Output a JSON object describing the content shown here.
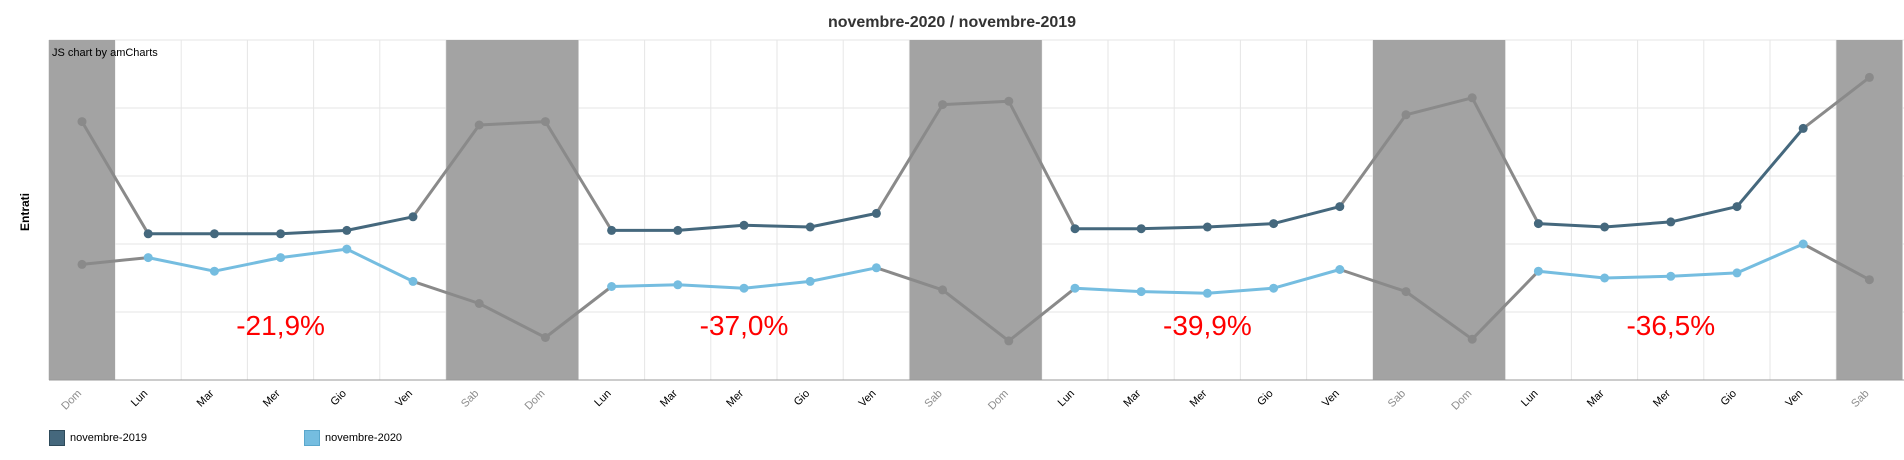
{
  "chart_data": {
    "type": "line",
    "title": "novembre-2020 / novembre-2019",
    "ylabel": "Entrati",
    "xlabel": "",
    "credit": "JS chart by amCharts",
    "categories": [
      "Dom",
      "Lun",
      "Mar",
      "Mer",
      "Gio",
      "Ven",
      "Sab",
      "Dom",
      "Lun",
      "Mar",
      "Mer",
      "Gio",
      "Ven",
      "Sab",
      "Dom",
      "Lun",
      "Mar",
      "Mer",
      "Gio",
      "Ven",
      "Sab",
      "Dom",
      "Lun",
      "Mar",
      "Mer",
      "Gio",
      "Ven",
      "Sab"
    ],
    "weekend": [
      true,
      false,
      false,
      false,
      false,
      false,
      true,
      true,
      false,
      false,
      false,
      false,
      false,
      true,
      true,
      false,
      false,
      false,
      false,
      false,
      true,
      true,
      false,
      false,
      false,
      false,
      false,
      true
    ],
    "ylim": [
      0,
      100
    ],
    "grid": true,
    "legend_position": "bottom-left",
    "series": [
      {
        "name": "novembre-2019",
        "color": "#45687d",
        "values": [
          76,
          43,
          43,
          43,
          44,
          48,
          75,
          76,
          44,
          44,
          45.5,
          45,
          49,
          81,
          82,
          44.5,
          44.5,
          45,
          46,
          51,
          78,
          83,
          46,
          45,
          46.5,
          51,
          74,
          89
        ]
      },
      {
        "name": "novembre-2020",
        "color": "#75bde0",
        "values": [
          34,
          36,
          32,
          36,
          38.5,
          29,
          22.5,
          12.5,
          27.5,
          28,
          27,
          29,
          33,
          26.5,
          11.5,
          27,
          26,
          25.5,
          27,
          32.5,
          26,
          12,
          32,
          30,
          30.5,
          31.5,
          40,
          29.5
        ]
      }
    ],
    "annotations": [
      "-21,9%",
      "-37,0%",
      "-39,9%",
      "-36,5%"
    ],
    "colors": {
      "weekend_band": "#a3a3a3",
      "annotation": "#ff0000",
      "weekend_line": "#8a8a8a",
      "grid": "#e6e6e6"
    }
  }
}
